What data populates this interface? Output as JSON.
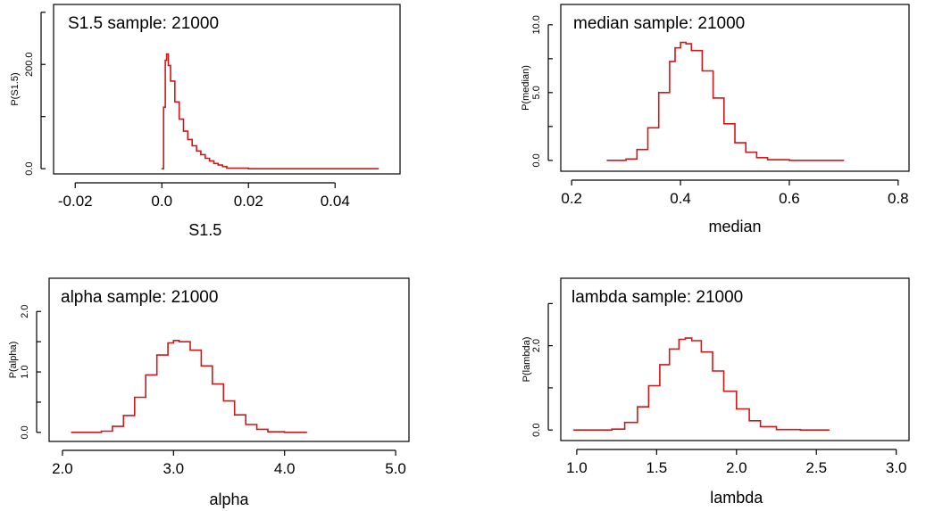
{
  "colors": {
    "series": "#d01818",
    "axis": "#000000",
    "background": "#ffffff"
  },
  "chart_data": [
    {
      "type": "line",
      "title": "S1.5 sample: 21000",
      "xlabel": "S1.5",
      "ylabel": "P(S1.5)",
      "xlim": [
        -0.025,
        0.055
      ],
      "ylim": [
        -10,
        315
      ],
      "xticks": [
        "-0.02",
        "0.0",
        "0.02",
        "0.04"
      ],
      "xtick_values": [
        -0.02,
        0.0,
        0.02,
        0.04
      ],
      "yticks": [
        "0.0",
        "200.0"
      ],
      "ytick_values": [
        0,
        200
      ],
      "ytick_marks": [
        0,
        100,
        200,
        300
      ],
      "x": [
        0.0,
        0.0004,
        0.0008,
        0.0011,
        0.0015,
        0.002,
        0.003,
        0.004,
        0.005,
        0.006,
        0.007,
        0.008,
        0.009,
        0.01,
        0.011,
        0.012,
        0.013,
        0.014,
        0.015,
        0.02,
        0.03,
        0.04,
        0.05
      ],
      "y": [
        0,
        118,
        208,
        220,
        198,
        168,
        128,
        95,
        72,
        56,
        44,
        34,
        27,
        20,
        15,
        10,
        7,
        4,
        1,
        0,
        0,
        0,
        0
      ]
    },
    {
      "type": "line",
      "title": "median sample: 21000",
      "xlabel": "median",
      "ylabel": "P(median)",
      "xlim": [
        0.18,
        0.82
      ],
      "ylim": [
        -0.8,
        11.5
      ],
      "xticks": [
        "0.2",
        "0.4",
        "0.6",
        "0.8"
      ],
      "xtick_values": [
        0.2,
        0.4,
        0.6,
        0.8
      ],
      "yticks": [
        "0.0",
        "5.0",
        "10.0"
      ],
      "ytick_values": [
        0,
        5,
        10
      ],
      "ytick_marks": [
        0,
        2.5,
        5,
        7.5,
        10
      ],
      "x": [
        0.265,
        0.3,
        0.32,
        0.34,
        0.36,
        0.38,
        0.39,
        0.4,
        0.41,
        0.42,
        0.44,
        0.46,
        0.48,
        0.5,
        0.52,
        0.54,
        0.56,
        0.6,
        0.65,
        0.7
      ],
      "y": [
        0,
        0.1,
        0.8,
        2.4,
        5.0,
        7.3,
        8.3,
        8.7,
        8.6,
        8.1,
        6.6,
        4.6,
        2.7,
        1.3,
        0.6,
        0.2,
        0.05,
        0,
        0,
        0
      ]
    },
    {
      "type": "line",
      "title": "alpha sample: 21000",
      "xlabel": "alpha",
      "ylabel": "P(alpha)",
      "xlim": [
        1.88,
        5.12
      ],
      "ylim": [
        -0.15,
        2.55
      ],
      "xticks": [
        "2.0",
        "3.0",
        "4.0",
        "5.0"
      ],
      "xtick_values": [
        2.0,
        3.0,
        4.0,
        5.0
      ],
      "yticks": [
        "0.0",
        "1.0",
        "2.0"
      ],
      "ytick_values": [
        0,
        1,
        2
      ],
      "ytick_marks": [
        0,
        0.5,
        1,
        1.5,
        2
      ],
      "x": [
        2.08,
        2.35,
        2.45,
        2.55,
        2.65,
        2.75,
        2.85,
        2.95,
        3.0,
        3.05,
        3.15,
        3.25,
        3.35,
        3.45,
        3.55,
        3.65,
        3.75,
        3.85,
        4.0,
        4.2
      ],
      "y": [
        0,
        0.02,
        0.1,
        0.28,
        0.58,
        0.95,
        1.28,
        1.48,
        1.52,
        1.5,
        1.36,
        1.1,
        0.8,
        0.52,
        0.29,
        0.13,
        0.05,
        0.01,
        0,
        0
      ]
    },
    {
      "type": "line",
      "title": "lambda sample: 21000",
      "xlabel": "lambda",
      "ylabel": "P(lambda)",
      "xlim": [
        0.9,
        3.08
      ],
      "ylim": [
        -0.25,
        3.6
      ],
      "xticks": [
        "1.0",
        "1.5",
        "2.0",
        "2.5",
        "3.0"
      ],
      "xtick_values": [
        1.0,
        1.5,
        2.0,
        2.5,
        3.0
      ],
      "yticks": [
        "0.0",
        "2.0"
      ],
      "ytick_values": [
        0,
        2
      ],
      "ytick_marks": [
        0,
        1,
        2,
        3
      ],
      "x": [
        0.98,
        1.22,
        1.3,
        1.38,
        1.45,
        1.52,
        1.58,
        1.64,
        1.68,
        1.72,
        1.78,
        1.85,
        1.92,
        2.0,
        2.08,
        2.15,
        2.25,
        2.4,
        2.58
      ],
      "y": [
        0,
        0.02,
        0.18,
        0.55,
        1.05,
        1.55,
        1.92,
        2.15,
        2.18,
        2.12,
        1.85,
        1.4,
        0.92,
        0.5,
        0.22,
        0.08,
        0.01,
        0,
        0
      ]
    }
  ]
}
